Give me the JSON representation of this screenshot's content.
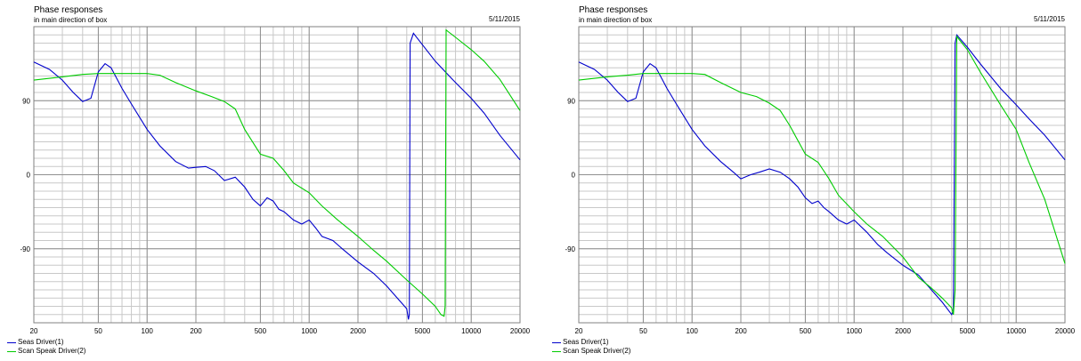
{
  "chart_data": [
    {
      "type": "line",
      "title": "Phase responses",
      "subtitle": "in main direction of box",
      "date": "5/11/2015",
      "xscale": "log",
      "xlim": [
        20,
        20000
      ],
      "ylim": [
        -180,
        180
      ],
      "x_ticks": [
        "20",
        "50",
        "100",
        "200",
        "500",
        "1000",
        "2000",
        "5000",
        "10000",
        "20000"
      ],
      "y_ticks": [
        "90",
        "0",
        "-90"
      ],
      "grid": true,
      "legend_position": "bottom-left",
      "series": [
        {
          "name": "Seas Driver(1)",
          "color": "#0000cc",
          "x": [
            20,
            25,
            30,
            35,
            40,
            45,
            50,
            55,
            60,
            70,
            80,
            100,
            120,
            150,
            180,
            200,
            230,
            260,
            300,
            350,
            400,
            450,
            500,
            550,
            600,
            650,
            700,
            800,
            900,
            1000,
            1100,
            1200,
            1400,
            1600,
            2000,
            2500,
            3000,
            3500,
            4000,
            4100,
            4150,
            4200,
            4400,
            5000,
            6000,
            7000,
            8000,
            10000,
            12000,
            15000,
            20000
          ],
          "y": [
            137,
            128,
            115,
            100,
            89,
            93,
            125,
            135,
            130,
            105,
            86,
            55,
            35,
            16,
            8,
            9,
            10,
            5,
            -7,
            -3,
            -15,
            -30,
            -38,
            -28,
            -32,
            -42,
            -45,
            -55,
            -60,
            -55,
            -65,
            -75,
            -80,
            -90,
            -106,
            -120,
            -135,
            -150,
            -163,
            -176,
            -170,
            160,
            172,
            158,
            138,
            124,
            112,
            93,
            75,
            48,
            18
          ]
        },
        {
          "name": "Scan Speak Driver(2)",
          "color": "#00cc00",
          "x": [
            20,
            30,
            40,
            50,
            70,
            100,
            120,
            150,
            200,
            250,
            300,
            350,
            400,
            500,
            600,
            700,
            800,
            1000,
            1200,
            1500,
            2000,
            2500,
            3000,
            4000,
            5000,
            6000,
            6500,
            6800,
            6900,
            7000,
            7200,
            8000,
            10000,
            12000,
            15000,
            20000
          ],
          "y": [
            115,
            119,
            122,
            123,
            123,
            123,
            121,
            112,
            102,
            95,
            89,
            80,
            55,
            25,
            20,
            5,
            -10,
            -22,
            -38,
            -55,
            -75,
            -92,
            -105,
            -128,
            -145,
            -160,
            -170,
            -172,
            -160,
            176,
            174,
            167,
            152,
            138,
            116,
            78
          ]
        }
      ]
    },
    {
      "type": "line",
      "title": "Phase responses",
      "subtitle": "in main direction of box",
      "date": "5/11/2015",
      "xscale": "log",
      "xlim": [
        20,
        20000
      ],
      "ylim": [
        -180,
        180
      ],
      "x_ticks": [
        "20",
        "50",
        "100",
        "200",
        "500",
        "1000",
        "2000",
        "5000",
        "10000",
        "20000"
      ],
      "y_ticks": [
        "90",
        "0",
        "-90"
      ],
      "grid": true,
      "legend_position": "bottom-left",
      "series": [
        {
          "name": "Seas Driver(1)",
          "color": "#0000cc",
          "x": [
            20,
            25,
            30,
            35,
            40,
            45,
            50,
            55,
            60,
            70,
            80,
            100,
            120,
            150,
            180,
            200,
            230,
            260,
            300,
            350,
            400,
            450,
            500,
            550,
            600,
            650,
            700,
            800,
            900,
            1000,
            1200,
            1400,
            1600,
            2000,
            2500,
            3000,
            3500,
            4000,
            4100,
            4200,
            4300,
            5000,
            6000,
            8000,
            10000,
            12000,
            15000,
            20000
          ],
          "y": [
            137,
            128,
            115,
            100,
            89,
            93,
            125,
            135,
            130,
            105,
            86,
            55,
            35,
            16,
            3,
            -5,
            0,
            3,
            7,
            3,
            -5,
            -15,
            -28,
            -35,
            -32,
            -40,
            -45,
            -55,
            -60,
            -55,
            -70,
            -85,
            -95,
            -110,
            -122,
            -140,
            -155,
            -170,
            -165,
            160,
            170,
            155,
            135,
            105,
            85,
            68,
            48,
            18
          ]
        },
        {
          "name": "Scan Speak Driver(2)",
          "color": "#00cc00",
          "x": [
            20,
            30,
            40,
            50,
            70,
            100,
            120,
            150,
            200,
            250,
            300,
            350,
            400,
            500,
            600,
            700,
            800,
            1000,
            1200,
            1500,
            2000,
            2500,
            3000,
            3500,
            4000,
            4100,
            4200,
            4300,
            5000,
            6000,
            8000,
            10000,
            12000,
            15000,
            20000
          ],
          "y": [
            115,
            119,
            121,
            123,
            123,
            123,
            122,
            112,
            100,
            95,
            87,
            78,
            60,
            25,
            15,
            -5,
            -25,
            -45,
            -60,
            -75,
            -100,
            -125,
            -138,
            -150,
            -162,
            -170,
            -140,
            168,
            152,
            125,
            85,
            55,
            15,
            -30,
            -108
          ]
        }
      ]
    }
  ]
}
